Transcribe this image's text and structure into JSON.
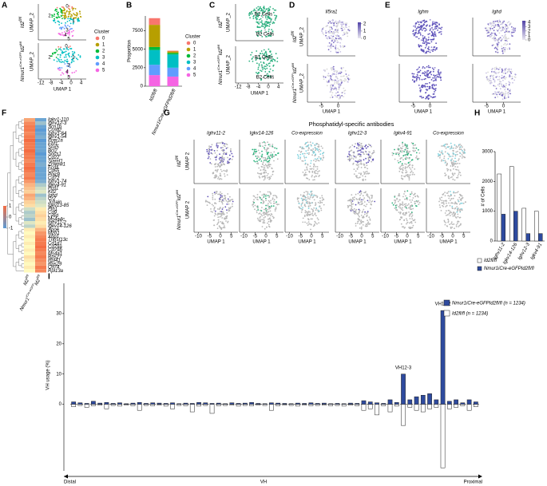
{
  "letters": [
    "A",
    "B",
    "C",
    "D",
    "E",
    "F",
    "G",
    "H",
    "I"
  ],
  "genotypes": {
    "wt": {
      "gene": "Id2",
      "sup": "fl/fl"
    },
    "ko": {
      "gene1": "Nmur1",
      "sup1": "iCre-eGFP",
      "gene2": "Id2",
      "sup2": "fl/fl"
    }
  },
  "umap": {
    "axis1": "UMAP 1",
    "axis2": "UMAP_2",
    "axis2_g": "UMAP 2"
  },
  "panel_a": {
    "xlim": [
      -13,
      6
    ],
    "xticks": [
      -12,
      -8,
      -4,
      0,
      4
    ]
  },
  "clusters": {
    "title": "Cluster",
    "labels": [
      "0",
      "1",
      "2",
      "3",
      "4",
      "5"
    ],
    "colors": [
      "#F8766D",
      "#B79F00",
      "#00BA38",
      "#00BFC4",
      "#619CFF",
      "#F564E3"
    ]
  },
  "panel_c": {
    "labels": [
      "B1 Cells",
      "B2 Cells"
    ],
    "xlim": [
      -13,
      6
    ],
    "xticks": [
      -12,
      -8,
      -4,
      0,
      4
    ]
  },
  "panel_d": {
    "title": "Il5ra1",
    "xlim": [
      -9,
      5
    ],
    "xticks": [
      -5,
      0
    ],
    "colorbar": {
      "lim": [
        0,
        2.2
      ],
      "ticks": [
        0,
        1,
        2
      ]
    }
  },
  "panel_e": {
    "titles": [
      "Ighm",
      "Ighd"
    ],
    "xlim": [
      -9,
      5
    ],
    "xticks": [
      -5,
      0
    ],
    "colorbar": {
      "lim": [
        0,
        4.3
      ],
      "ticks": [
        0,
        1,
        2,
        3,
        4
      ]
    }
  },
  "panel_f": {
    "genes": [
      "Igkv1-110",
      "Ighv12-3",
      "Scn1b",
      "Ccnd2",
      "Ighv1-64",
      "Ighv1-54",
      "Fcer2a",
      "Ebf1",
      "Sox5",
      "Bcl2",
      "Socs1",
      "Cd22",
      "Slamf1",
      "Zcwpw1",
      "Fcrla",
      "Cd55",
      "Plac8",
      "Cd72",
      "Ighv1-74",
      "Igkv4-91",
      "Fcrl1",
      "Klf2",
      "Ighd",
      "Cr2",
      "Jchain",
      "Igkv13-85",
      "Fth1",
      "Cd9",
      "Ly6d",
      "Ms4a4c",
      "Ighv11-2",
      "Igkv14-126",
      "Apoe",
      "Mzb1",
      "Xbp1",
      "Tnfrsf13c",
      "Cd1d1",
      "Cd79a",
      "Cd79b",
      "Ms4a1",
      "Rps27",
      "Rpl41",
      "Rps29",
      "Cd74",
      "Rpl13a"
    ],
    "values": [
      [
        0.6,
        -0.9
      ],
      [
        0.8,
        -0.6
      ],
      [
        0.9,
        -0.9
      ],
      [
        0.9,
        -1
      ],
      [
        0.8,
        -0.9
      ],
      [
        0.9,
        -0.8
      ],
      [
        1,
        -1
      ],
      [
        0.9,
        -0.9
      ],
      [
        0.9,
        -0.9
      ],
      [
        1,
        -0.9
      ],
      [
        0.9,
        -1
      ],
      [
        0.9,
        -0.9
      ],
      [
        0.8,
        -0.9
      ],
      [
        0.9,
        -0.8
      ],
      [
        1,
        -0.9
      ],
      [
        0.9,
        -0.9
      ],
      [
        0.8,
        -0.9
      ],
      [
        0.9,
        -0.9
      ],
      [
        0.7,
        -0.8
      ],
      [
        0.5,
        -0.5
      ],
      [
        0.4,
        -0.3
      ],
      [
        0.3,
        -0.2
      ],
      [
        0.6,
        -0.6
      ],
      [
        0.5,
        -0.4
      ],
      [
        0.3,
        -0.3
      ],
      [
        0.2,
        -0.2
      ],
      [
        -0.3,
        0.1
      ],
      [
        -0.5,
        0.2
      ],
      [
        -0.4,
        0.3
      ],
      [
        -0.6,
        0.2
      ],
      [
        -0.2,
        0.1
      ],
      [
        -0.4,
        0.2
      ],
      [
        0.1,
        0.5
      ],
      [
        0,
        0.7
      ],
      [
        0.1,
        0.8
      ],
      [
        0,
        0.9
      ],
      [
        0.1,
        0.9
      ],
      [
        0,
        1
      ],
      [
        0.1,
        0.9
      ],
      [
        0,
        0.8
      ],
      [
        0.2,
        0.9
      ],
      [
        0.1,
        0.8
      ],
      [
        0,
        0.7
      ],
      [
        0.1,
        0.9
      ],
      [
        0,
        0.8
      ]
    ],
    "colorbar": {
      "lim": [
        -1,
        1
      ],
      "ticks": [
        -1,
        0,
        1
      ]
    }
  },
  "panel_g": {
    "title": "Phosphatidyl-specific antibodies",
    "columns": [
      "Ighv11-2",
      "Igkv14-126",
      "Co-expression",
      "Ighv12-3",
      "Igkv4-91",
      "Co-expression"
    ],
    "xlim": [
      -12,
      8
    ],
    "xticks": [
      -10,
      -5,
      0,
      5
    ]
  },
  "chart_data": [
    {
      "type": "stacked_bar",
      "ylabel": "Proportion",
      "legend_title": "Cluster",
      "categories": [
        "Id2fl/fl",
        "Nmur1iCre-eGFPId2fl/fl"
      ],
      "series": [
        {
          "name": "5",
          "color": "#F564E3",
          "values": [
            1500,
            1300
          ]
        },
        {
          "name": "4",
          "color": "#619CFF",
          "values": [
            1400,
            1200
          ]
        },
        {
          "name": "3",
          "color": "#00BFC4",
          "values": [
            2000,
            1800
          ]
        },
        {
          "name": "2",
          "color": "#00BA38",
          "values": [
            400,
            200
          ]
        },
        {
          "name": "1",
          "color": "#B79F00",
          "values": [
            3000,
            200
          ]
        },
        {
          "name": "0",
          "color": "#F8766D",
          "values": [
            900,
            100
          ]
        }
      ],
      "ylim": [
        0,
        9500
      ],
      "yticks": [
        0,
        2500,
        5000,
        7500
      ]
    },
    {
      "type": "bar",
      "ylabel": "# of Cells",
      "categories": [
        "Ighv11-2",
        "Igkv14-126",
        "Ighv12-3",
        "Igkv4-91"
      ],
      "series": [
        {
          "name": "Id2fl/fl",
          "color": "#ffffff",
          "values": [
            2250,
            2500,
            1100,
            1000
          ]
        },
        {
          "name": "Nmur1iCre-eGFPId2fl/fl",
          "color": "#2e4a9e",
          "values": [
            900,
            1000,
            250,
            250
          ]
        }
      ],
      "ylim": [
        0,
        3000
      ],
      "yticks": [
        0,
        1000,
        2000,
        3000
      ]
    },
    {
      "type": "mirror_bar",
      "ylabel": "VH usage (%)",
      "xlabel": "VH",
      "x_start": "Distal",
      "x_end": "Proximal",
      "annotations": [
        "VH12-3",
        "VH11-2"
      ],
      "series": [
        {
          "name": "Nmur1iCre-eGFPId2fl/fl (n = 1234)",
          "color": "#2e4a9e",
          "values": [
            0.8,
            0.5,
            0.3,
            1,
            0.4,
            0.6,
            0.3,
            0.5,
            0.2,
            0.4,
            0.6,
            0.3,
            0.5,
            0.4,
            0.3,
            0.5,
            0.2,
            0.4,
            0.3,
            0.6,
            0.5,
            0.3,
            0.4,
            0.2,
            0.5,
            0.3,
            0.4,
            0.6,
            0.3,
            0.2,
            0.5,
            0.4,
            0.3,
            0.2,
            0.4,
            0.3,
            0.5,
            0.3,
            0.4,
            0.2,
            0.3,
            0.2,
            0.4,
            0.3,
            1.2,
            0.8,
            0.5,
            0.3,
            1.5,
            0.6,
            10,
            1.5,
            2.5,
            3,
            3.5,
            1.5,
            31,
            1,
            1.5,
            0.5,
            1.5,
            0.8
          ]
        },
        {
          "name": "Id2fl/fl (n = 1234)",
          "color": "#ffffff",
          "values": [
            -0.8,
            -0.4,
            -1,
            -0.5,
            -0.3,
            -1.5,
            -0.4,
            -0.6,
            -0.3,
            -0.5,
            -2,
            -0.4,
            -0.5,
            -0.3,
            -0.6,
            -1.5,
            -0.4,
            -0.5,
            -2.5,
            -0.6,
            -0.4,
            -3,
            -0.5,
            -0.4,
            -0.3,
            -0.6,
            -0.4,
            -0.5,
            -0.3,
            -0.4,
            -2,
            -0.5,
            -0.3,
            -0.4,
            -0.6,
            -0.3,
            -0.5,
            -0.4,
            -0.3,
            -0.5,
            -0.4,
            -0.6,
            -0.3,
            -0.5,
            -2,
            -1.5,
            -3.5,
            -0.5,
            -2.5,
            -0.6,
            -7,
            -1,
            -2,
            -2.5,
            -1.5,
            -1,
            -21,
            -1.5,
            -1,
            -0.5,
            -2,
            -0.8
          ]
        }
      ],
      "ylim": [
        -22,
        40
      ],
      "yticks": [
        0,
        10,
        20,
        30
      ]
    }
  ]
}
